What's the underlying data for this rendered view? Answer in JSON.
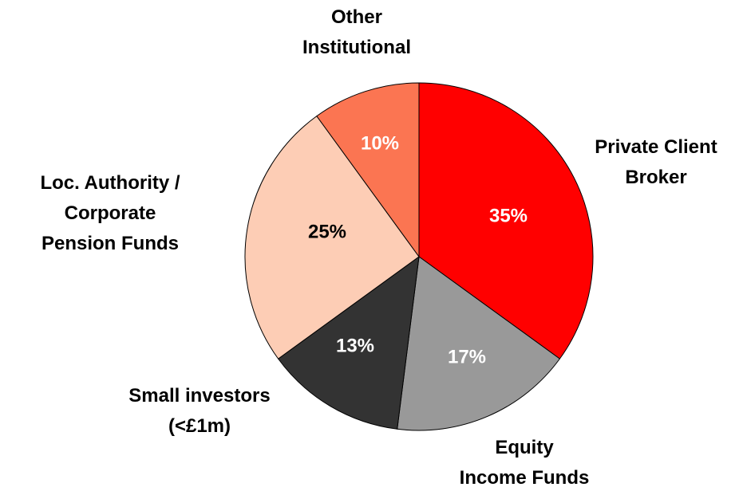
{
  "chart_data": {
    "type": "pie",
    "categories": [
      "Private Client\nBroker",
      "Equity\nIncome Funds",
      "Small investors\n(<£1m)",
      "Loc. Authority /\nCorporate\nPension Funds",
      "Other\nInstitutional"
    ],
    "values": [
      35,
      17,
      13,
      25,
      10
    ],
    "value_labels": [
      "35%",
      "17%",
      "13%",
      "25%",
      "10%"
    ],
    "colors": [
      "#ff0000",
      "#999999",
      "#333333",
      "#fdcdb5",
      "#fb7552"
    ],
    "label_colors": [
      "#ffffff",
      "#ffffff",
      "#ffffff",
      "#000000",
      "#ffffff"
    ]
  }
}
